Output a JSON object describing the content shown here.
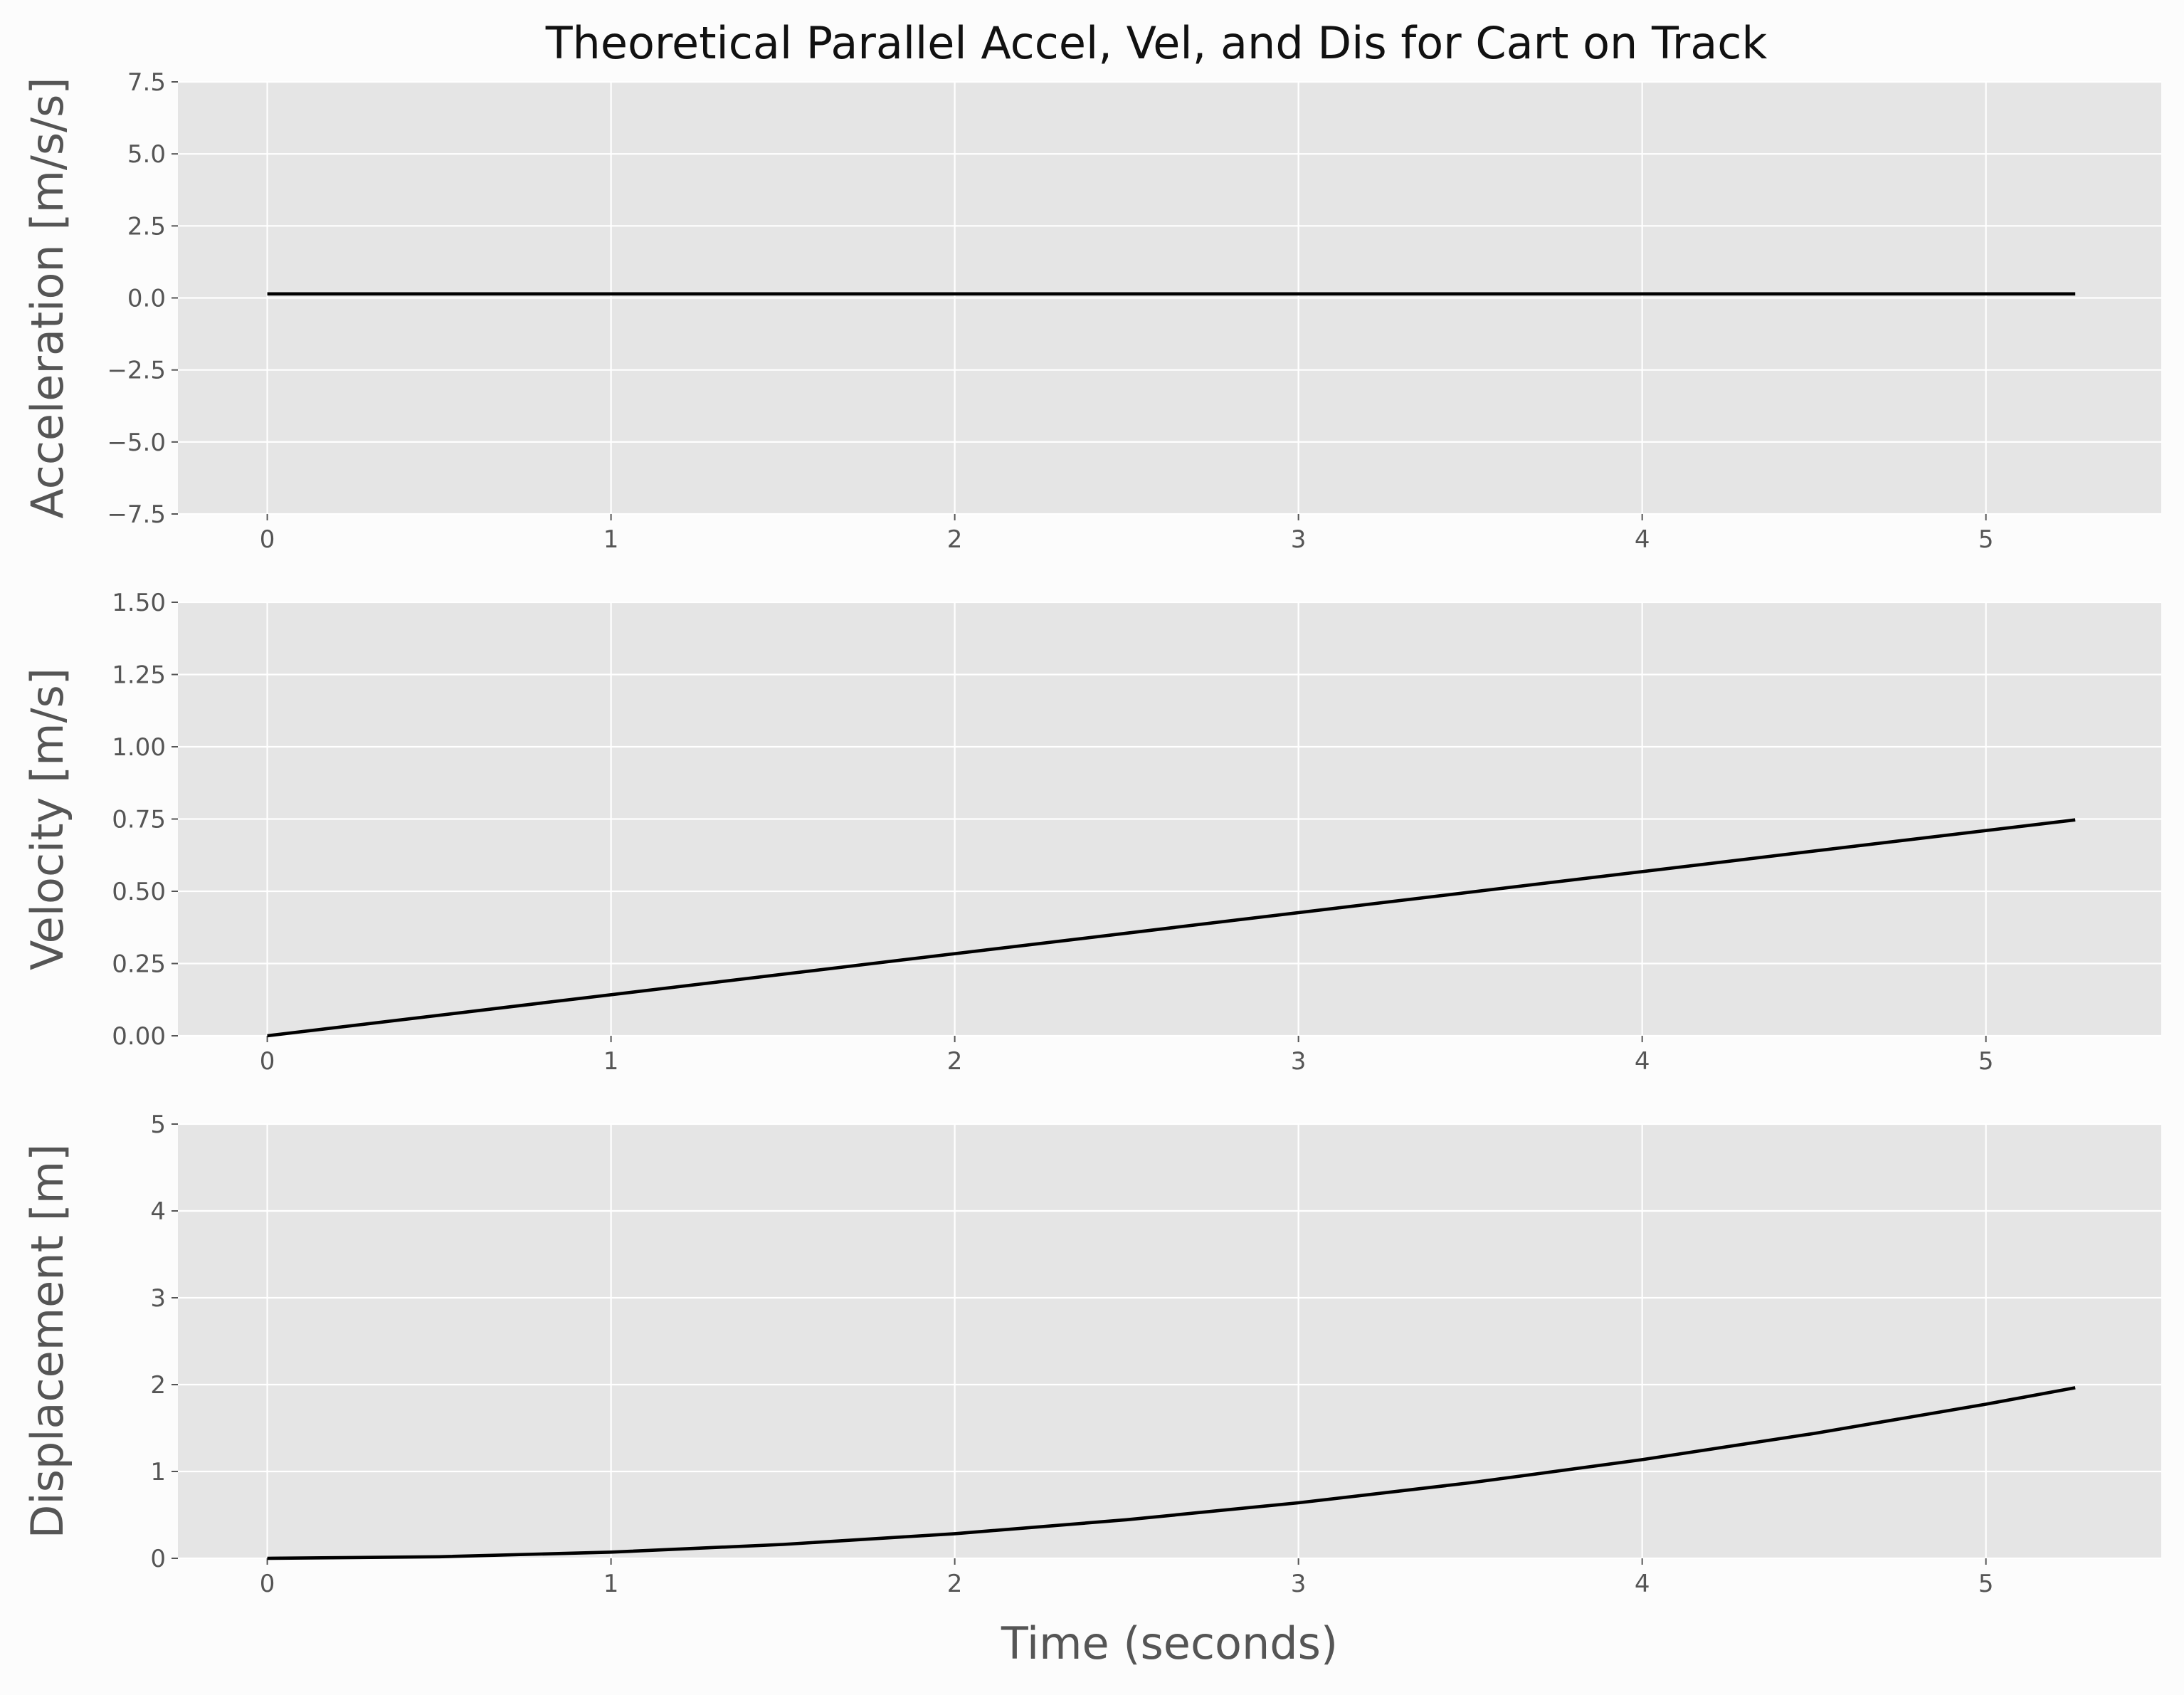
{
  "chart_data": [
    {
      "type": "line",
      "title": "Theoretical Parallel Accel, Vel, and Dis for Cart on Track",
      "xlabel": "",
      "ylabel": "Acceleration [m/s/s]",
      "xlim": [
        -0.26,
        5.51
      ],
      "ylim": [
        -7.5,
        7.5
      ],
      "xticks": [
        0,
        1,
        2,
        3,
        4,
        5
      ],
      "yticks": [
        -7.5,
        -5.0,
        -2.5,
        0.0,
        2.5,
        5.0,
        7.5
      ],
      "ytick_labels": [
        "−7.5",
        "−5.0",
        "−2.5",
        "0.0",
        "2.5",
        "5.0",
        "7.5"
      ],
      "grid": true,
      "series": [
        {
          "x": [
            0,
            5.26
          ],
          "values": [
            0.142,
            0.142
          ],
          "color": "#000000"
        }
      ]
    },
    {
      "type": "line",
      "title": "",
      "xlabel": "",
      "ylabel": "Velocity [m/s]",
      "xlim": [
        -0.26,
        5.51
      ],
      "ylim": [
        0,
        1.5
      ],
      "xticks": [
        0,
        1,
        2,
        3,
        4,
        5
      ],
      "yticks": [
        0,
        0.25,
        0.5,
        0.75,
        1.0,
        1.25,
        1.5
      ],
      "ytick_labels": [
        "0.00",
        "0.25",
        "0.50",
        "0.75",
        "1.00",
        "1.25",
        "1.50"
      ],
      "grid": true,
      "series": [
        {
          "x": [
            0,
            5.26
          ],
          "values": [
            0,
            0.747
          ],
          "color": "#000000"
        }
      ]
    },
    {
      "type": "line",
      "title": "",
      "xlabel": "Time (seconds)",
      "ylabel": "Displacement [m]",
      "xlim": [
        -0.26,
        5.51
      ],
      "ylim": [
        0,
        5
      ],
      "xticks": [
        0,
        1,
        2,
        3,
        4,
        5
      ],
      "yticks": [
        0,
        1,
        2,
        3,
        4,
        5
      ],
      "ytick_labels": [
        "0",
        "1",
        "2",
        "3",
        "4",
        "5"
      ],
      "grid": true,
      "series": [
        {
          "x": [
            0,
            0.5,
            1,
            1.5,
            2,
            2.5,
            3,
            3.5,
            4,
            4.5,
            5,
            5.26
          ],
          "values": [
            0,
            0.018,
            0.071,
            0.16,
            0.284,
            0.444,
            0.639,
            0.87,
            1.136,
            1.438,
            1.775,
            1.964
          ],
          "color": "#000000"
        }
      ]
    }
  ]
}
